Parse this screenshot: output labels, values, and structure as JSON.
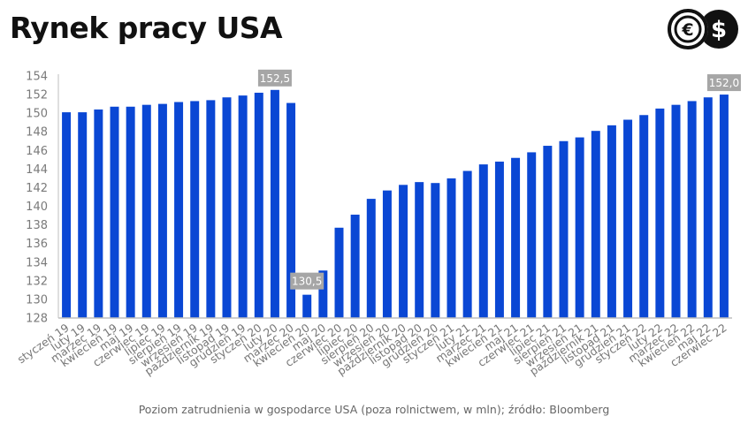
{
  "header": {
    "title": "Rynek pracy USA",
    "logo_icon": "euro-dollar-coins-icon"
  },
  "caption": "Poziom zatrudnienia w gospodarce USA (poza rolnictwem, w mln); źródło: Bloomberg",
  "colors": {
    "bar": "#0a47d4",
    "label_box": "#a6a6a6",
    "axis": "#bfbfbf"
  },
  "chart_data": {
    "type": "bar",
    "title": "Rynek pracy USA",
    "xlabel": "",
    "ylabel": "",
    "ylim": [
      128,
      154
    ],
    "yticks": [
      "128",
      "130",
      "132",
      "134",
      "136",
      "138",
      "140",
      "142",
      "144",
      "146",
      "148",
      "150",
      "152",
      "154"
    ],
    "grid": false,
    "legend": "none",
    "categories": [
      "styczeń 19",
      "luty 19",
      "marzec 19",
      "kwiecień 19",
      "maj 19",
      "czerwiec 19",
      "lipiec 19",
      "sierpień 19",
      "wrzesień 19",
      "październik 19",
      "listopad 19",
      "grudzień 19",
      "styczeń 20",
      "luty 20",
      "marzec 20",
      "kwiecień 20",
      "maj 20",
      "czerwiec 20",
      "lipiec 20",
      "sierpień 20",
      "wrzesień 20",
      "październik 20",
      "listopad 20",
      "grudzień 20",
      "styczeń 21",
      "luty 21",
      "marzec 21",
      "kwiecień 21",
      "maj 21",
      "czerwiec 21",
      "lipiec 21",
      "sierpień 21",
      "wrzesień 21",
      "październik 21",
      "listopad 21",
      "grudzień 21",
      "styczeń 22",
      "luty 22",
      "marzec 22",
      "kwiecień 22",
      "maj 22",
      "czerwiec 22"
    ],
    "values": [
      150.1,
      150.1,
      150.4,
      150.7,
      150.7,
      150.9,
      151.0,
      151.2,
      151.3,
      151.4,
      151.7,
      151.9,
      152.2,
      152.5,
      151.1,
      130.5,
      133.1,
      137.7,
      139.1,
      140.8,
      141.7,
      142.3,
      142.6,
      142.5,
      143.0,
      143.8,
      144.5,
      144.8,
      145.2,
      145.8,
      146.5,
      147.0,
      147.4,
      148.1,
      148.7,
      149.3,
      149.8,
      150.5,
      150.9,
      151.3,
      151.7,
      152.0
    ],
    "annotations": [
      {
        "category": "luty 20",
        "text": "152,5"
      },
      {
        "category": "kwiecień 20",
        "text": "130,5"
      },
      {
        "category": "czerwiec 22",
        "text": "152,0"
      }
    ]
  }
}
